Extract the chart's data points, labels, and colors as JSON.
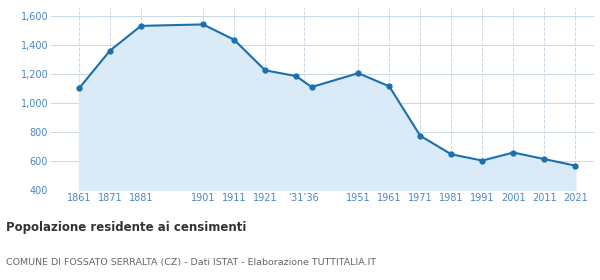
{
  "years": [
    1861,
    1871,
    1881,
    1901,
    1911,
    1921,
    1931,
    1936,
    1951,
    1961,
    1971,
    1981,
    1991,
    2001,
    2011,
    2021
  ],
  "population": [
    1100,
    1360,
    1530,
    1540,
    1435,
    1225,
    1185,
    1110,
    1205,
    1115,
    775,
    648,
    605,
    660,
    615,
    570
  ],
  "line_color": "#1a6faf",
  "fill_color": "#daeaf7",
  "marker_color": "#1a6faf",
  "background_color": "#ffffff",
  "grid_color_h": "#c8d8e8",
  "grid_color_v": "#c8d8e8",
  "title": "Popolazione residente ai censimenti",
  "subtitle": "COMUNE DI FOSSATO SERRALTA (CZ) - Dati ISTAT - Elaborazione TUTTITALIA.IT",
  "ylim": [
    400,
    1650
  ],
  "yticks": [
    400,
    600,
    800,
    1000,
    1200,
    1400,
    1600
  ],
  "ytick_labels": [
    "400",
    "600",
    "800",
    "1,000",
    "1,200",
    "1,400",
    "1,600"
  ],
  "custom_xtick_positions": [
    1861,
    1871,
    1881,
    1901,
    1911,
    1921,
    1933.5,
    1951,
    1961,
    1971,
    1981,
    1991,
    2001,
    2011,
    2021
  ],
  "custom_xtick_labels": [
    "1861",
    "1871",
    "1881",
    "1901",
    "1911",
    "1921",
    "’31’36",
    "1951",
    "1961",
    "1971",
    "1981",
    "1991",
    "2001",
    "2011",
    "2021"
  ],
  "axis_label_color": "#4a86c8",
  "title_color": "#333333",
  "subtitle_color": "#666666",
  "xlim": [
    1852,
    2027
  ]
}
